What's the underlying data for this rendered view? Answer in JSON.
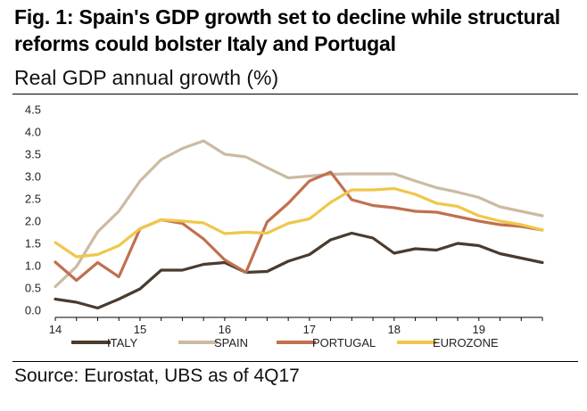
{
  "title": "Fig. 1: Spain's GDP growth set to decline while structural reforms could bolster Italy and Portugal",
  "subtitle": "Real GDP annual growth (%)",
  "source": "Source: Eurostat, UBS as of 4Q17",
  "chart_data": {
    "type": "line",
    "title": "Fig. 1: Spain's GDP growth set to decline while structural reforms could bolster Italy and Portugal",
    "subtitle": "Real GDP annual growth (%)",
    "xlabel": "",
    "ylabel": "",
    "x_ticks": [
      {
        "value": 14,
        "label": "14"
      },
      {
        "value": 15,
        "label": "15"
      },
      {
        "value": 16,
        "label": "16"
      },
      {
        "value": 17,
        "label": "17"
      },
      {
        "value": 18,
        "label": "18"
      },
      {
        "value": 19,
        "label": "19"
      }
    ],
    "xlim": [
      14,
      19.75
    ],
    "ylim": [
      0,
      4.5
    ],
    "y_ticks": [
      "0.0",
      "0.5",
      "1.0",
      "1.5",
      "2.0",
      "2.5",
      "3.0",
      "3.5",
      "4.0",
      "4.5"
    ],
    "grid": false,
    "legend_position": "bottom",
    "x": [
      14.0,
      14.25,
      14.5,
      14.75,
      15.0,
      15.25,
      15.5,
      15.75,
      16.0,
      16.25,
      16.5,
      16.75,
      17.0,
      17.25,
      17.5,
      17.75,
      18.0,
      18.25,
      18.5,
      18.75,
      19.0,
      19.25,
      19.5,
      19.75
    ],
    "series": [
      {
        "name": "ITALY",
        "color": "#4a3b2e",
        "values": [
          0.25,
          0.18,
          0.05,
          0.25,
          0.48,
          0.9,
          0.9,
          1.03,
          1.07,
          0.85,
          0.87,
          1.1,
          1.25,
          1.58,
          1.73,
          1.62,
          1.28,
          1.38,
          1.35,
          1.5,
          1.45,
          1.27,
          1.17,
          1.07
        ]
      },
      {
        "name": "SPAIN",
        "color": "#cbbba2",
        "values": [
          0.53,
          0.98,
          1.76,
          2.22,
          2.9,
          3.38,
          3.63,
          3.8,
          3.5,
          3.44,
          3.2,
          2.97,
          3.01,
          3.05,
          3.06,
          3.06,
          3.06,
          2.9,
          2.75,
          2.65,
          2.53,
          2.32,
          2.22,
          2.12
        ]
      },
      {
        "name": "PORTUGAL",
        "color": "#c0704f",
        "values": [
          1.08,
          0.67,
          1.07,
          0.75,
          1.83,
          2.03,
          1.95,
          1.6,
          1.13,
          0.85,
          1.98,
          2.4,
          2.9,
          3.1,
          2.48,
          2.35,
          2.3,
          2.22,
          2.2,
          2.1,
          2.0,
          1.92,
          1.88,
          1.8
        ]
      },
      {
        "name": "EUROZONE",
        "color": "#efc74a",
        "values": [
          1.52,
          1.2,
          1.25,
          1.45,
          1.83,
          2.03,
          2.0,
          1.96,
          1.72,
          1.75,
          1.73,
          1.95,
          2.05,
          2.42,
          2.7,
          2.7,
          2.73,
          2.6,
          2.4,
          2.33,
          2.12,
          2.0,
          1.92,
          1.8
        ]
      }
    ]
  }
}
